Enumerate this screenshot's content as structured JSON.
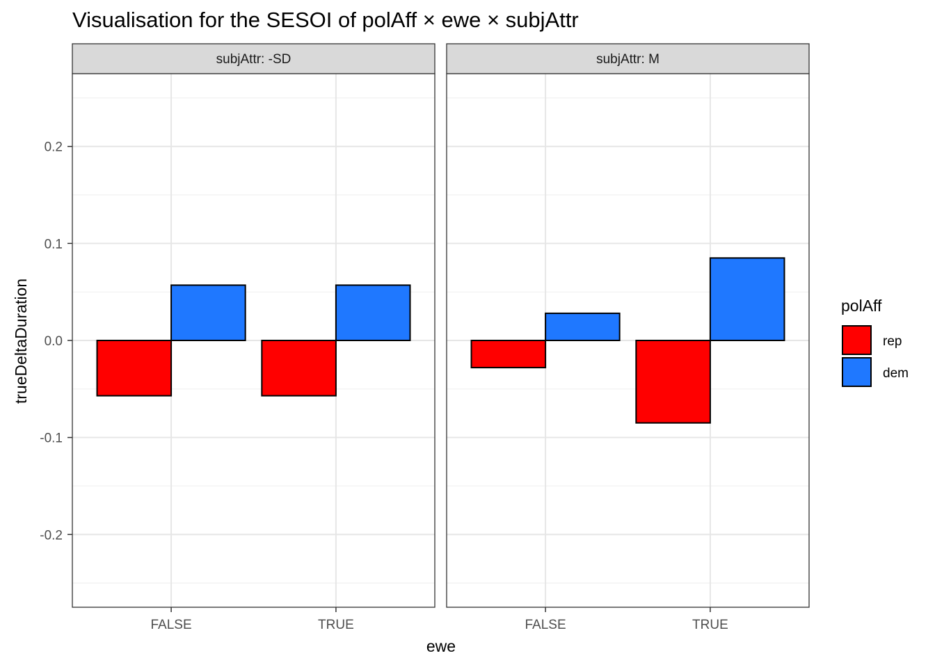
{
  "chart_data": {
    "type": "bar",
    "title": "Visualisation for the SESOI of polAff × ewe × subjAttr",
    "xlabel": "ewe",
    "ylabel": "trueDeltaDuration",
    "ylim": [
      -0.275,
      0.275
    ],
    "yticks": [
      -0.2,
      -0.1,
      0.0,
      0.1,
      0.2
    ],
    "ytick_labels": [
      "-0.2",
      "-0.1",
      "0.0",
      "0.1",
      "0.2"
    ],
    "grid": true,
    "legend": {
      "title": "polAff",
      "position": "right",
      "entries": [
        "rep",
        "dem"
      ]
    },
    "categories": [
      "FALSE",
      "TRUE"
    ],
    "series_colors": {
      "rep": "#ff0000",
      "dem": "#1f78ff"
    },
    "panels": [
      {
        "strip_label": "subjAttr: -SD",
        "series": [
          {
            "name": "rep",
            "values": [
              -0.057,
              -0.057
            ]
          },
          {
            "name": "dem",
            "values": [
              0.057,
              0.057
            ]
          }
        ]
      },
      {
        "strip_label": "subjAttr: M",
        "series": [
          {
            "name": "rep",
            "values": [
              -0.028,
              -0.085
            ]
          },
          {
            "name": "dem",
            "values": [
              0.028,
              0.085
            ]
          }
        ]
      }
    ]
  }
}
